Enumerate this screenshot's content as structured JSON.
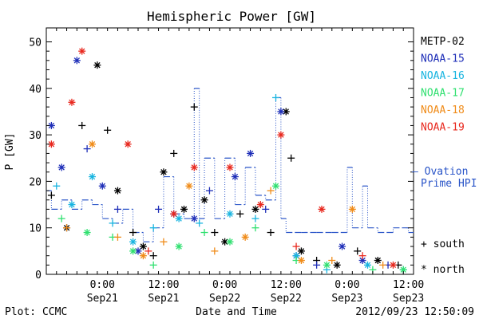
{
  "chart_data": {
    "type": "scatter",
    "title": "Hemispheric Power [GW]",
    "xlabel": "Date and Time",
    "ylabel": "P [GW]",
    "xlim": [
      "2012-09-20T13:00",
      "2012-09-23T13:00"
    ],
    "ylim": [
      0,
      53
    ],
    "yticks": [
      0,
      10,
      20,
      30,
      40,
      50
    ],
    "xticks": [
      {
        "top": "0:00",
        "bottom": "Sep21",
        "x": "2012-09-21T00:00"
      },
      {
        "top": "12:00",
        "bottom": "Sep21",
        "x": "2012-09-21T12:00"
      },
      {
        "top": "0:00",
        "bottom": "Sep22",
        "x": "2012-09-22T00:00"
      },
      {
        "top": "12:00",
        "bottom": "Sep22",
        "x": "2012-09-22T12:00"
      },
      {
        "top": "0:00",
        "bottom": "Sep23",
        "x": "2012-09-23T00:00"
      },
      {
        "top": "12:00",
        "bottom": "Sep23",
        "x": "2012-09-23T12:00"
      }
    ],
    "marker_legend": {
      "south": "+ south",
      "north": "* north"
    },
    "ovation_legend": [
      "— Ovation",
      "Prime HPI"
    ],
    "ovation_color": "#2a55c8",
    "series": [
      {
        "name": "METP-02",
        "color": "#000000",
        "points": [
          {
            "x": "2012-09-20T14:00",
            "y": 17,
            "m": "+"
          },
          {
            "x": "2012-09-20T17:00",
            "y": 10,
            "m": "*"
          },
          {
            "x": "2012-09-20T20:00",
            "y": 32,
            "m": "+"
          },
          {
            "x": "2012-09-20T23:00",
            "y": 45,
            "m": "*"
          },
          {
            "x": "2012-09-21T01:00",
            "y": 31,
            "m": "+"
          },
          {
            "x": "2012-09-21T03:00",
            "y": 18,
            "m": "*"
          },
          {
            "x": "2012-09-21T06:00",
            "y": 9,
            "m": "+"
          },
          {
            "x": "2012-09-21T08:00",
            "y": 6,
            "m": "*"
          },
          {
            "x": "2012-09-21T10:00",
            "y": 4,
            "m": "+"
          },
          {
            "x": "2012-09-21T12:00",
            "y": 22,
            "m": "*"
          },
          {
            "x": "2012-09-21T14:00",
            "y": 26,
            "m": "+"
          },
          {
            "x": "2012-09-21T16:00",
            "y": 14,
            "m": "*"
          },
          {
            "x": "2012-09-21T18:00",
            "y": 36,
            "m": "+"
          },
          {
            "x": "2012-09-21T20:00",
            "y": 16,
            "m": "*"
          },
          {
            "x": "2012-09-21T22:00",
            "y": 9,
            "m": "+"
          },
          {
            "x": "2012-09-22T00:00",
            "y": 7,
            "m": "*"
          },
          {
            "x": "2012-09-22T03:00",
            "y": 13,
            "m": "+"
          },
          {
            "x": "2012-09-22T06:00",
            "y": 14,
            "m": "*"
          },
          {
            "x": "2012-09-22T09:00",
            "y": 9,
            "m": "+"
          },
          {
            "x": "2012-09-22T12:00",
            "y": 35,
            "m": "*"
          },
          {
            "x": "2012-09-22T13:00",
            "y": 25,
            "m": "+"
          },
          {
            "x": "2012-09-22T15:00",
            "y": 5,
            "m": "*"
          },
          {
            "x": "2012-09-22T18:00",
            "y": 3,
            "m": "+"
          },
          {
            "x": "2012-09-22T22:00",
            "y": 2,
            "m": "*"
          },
          {
            "x": "2012-09-23T02:00",
            "y": 5,
            "m": "+"
          },
          {
            "x": "2012-09-23T06:00",
            "y": 3,
            "m": "*"
          },
          {
            "x": "2012-09-23T10:00",
            "y": 2,
            "m": "+"
          }
        ]
      },
      {
        "name": "NOAA-15",
        "color": "#1f2fb8",
        "points": [
          {
            "x": "2012-09-20T14:00",
            "y": 32,
            "m": "*"
          },
          {
            "x": "2012-09-20T16:00",
            "y": 23,
            "m": "*"
          },
          {
            "x": "2012-09-20T19:00",
            "y": 46,
            "m": "*"
          },
          {
            "x": "2012-09-20T21:00",
            "y": 27,
            "m": "+"
          },
          {
            "x": "2012-09-21T00:00",
            "y": 19,
            "m": "*"
          },
          {
            "x": "2012-09-21T03:00",
            "y": 14,
            "m": "+"
          },
          {
            "x": "2012-09-21T07:00",
            "y": 5,
            "m": "*"
          },
          {
            "x": "2012-09-21T11:00",
            "y": 14,
            "m": "+"
          },
          {
            "x": "2012-09-21T14:00",
            "y": 13,
            "m": "*"
          },
          {
            "x": "2012-09-21T18:00",
            "y": 12,
            "m": "*"
          },
          {
            "x": "2012-09-21T21:00",
            "y": 18,
            "m": "+"
          },
          {
            "x": "2012-09-22T02:00",
            "y": 21,
            "m": "*"
          },
          {
            "x": "2012-09-22T05:00",
            "y": 26,
            "m": "*"
          },
          {
            "x": "2012-09-22T08:00",
            "y": 14,
            "m": "+"
          },
          {
            "x": "2012-09-22T11:00",
            "y": 35,
            "m": "*"
          },
          {
            "x": "2012-09-22T14:00",
            "y": 4,
            "m": "*"
          },
          {
            "x": "2012-09-22T18:00",
            "y": 2,
            "m": "+"
          },
          {
            "x": "2012-09-22T23:00",
            "y": 6,
            "m": "*"
          },
          {
            "x": "2012-09-23T03:00",
            "y": 3,
            "m": "*"
          },
          {
            "x": "2012-09-23T08:00",
            "y": 2,
            "m": "+"
          }
        ]
      },
      {
        "name": "NOAA-16",
        "color": "#18b4e0",
        "points": [
          {
            "x": "2012-09-20T15:00",
            "y": 19,
            "m": "+"
          },
          {
            "x": "2012-09-20T18:00",
            "y": 15,
            "m": "*"
          },
          {
            "x": "2012-09-20T22:00",
            "y": 21,
            "m": "*"
          },
          {
            "x": "2012-09-21T02:00",
            "y": 11,
            "m": "+"
          },
          {
            "x": "2012-09-21T06:00",
            "y": 7,
            "m": "*"
          },
          {
            "x": "2012-09-21T10:00",
            "y": 10,
            "m": "+"
          },
          {
            "x": "2012-09-21T15:00",
            "y": 12,
            "m": "*"
          },
          {
            "x": "2012-09-21T19:00",
            "y": 11,
            "m": "+"
          },
          {
            "x": "2012-09-22T01:00",
            "y": 13,
            "m": "*"
          },
          {
            "x": "2012-09-22T06:00",
            "y": 12,
            "m": "+"
          },
          {
            "x": "2012-09-22T10:00",
            "y": 38,
            "m": "+"
          },
          {
            "x": "2012-09-22T14:00",
            "y": 4,
            "m": "*"
          },
          {
            "x": "2012-09-22T20:00",
            "y": 1,
            "m": "+"
          },
          {
            "x": "2012-09-23T04:00",
            "y": 2,
            "m": "*"
          },
          {
            "x": "2012-09-23T11:00",
            "y": 1,
            "m": "+"
          }
        ]
      },
      {
        "name": "NOAA-17",
        "color": "#30e070",
        "points": [
          {
            "x": "2012-09-20T16:00",
            "y": 12,
            "m": "+"
          },
          {
            "x": "2012-09-20T21:00",
            "y": 9,
            "m": "*"
          },
          {
            "x": "2012-09-21T02:00",
            "y": 8,
            "m": "+"
          },
          {
            "x": "2012-09-21T06:00",
            "y": 5,
            "m": "*"
          },
          {
            "x": "2012-09-21T10:00",
            "y": 2,
            "m": "+"
          },
          {
            "x": "2012-09-21T15:00",
            "y": 6,
            "m": "*"
          },
          {
            "x": "2012-09-21T20:00",
            "y": 9,
            "m": "+"
          },
          {
            "x": "2012-09-22T01:00",
            "y": 7,
            "m": "*"
          },
          {
            "x": "2012-09-22T06:00",
            "y": 10,
            "m": "+"
          },
          {
            "x": "2012-09-22T10:00",
            "y": 19,
            "m": "*"
          },
          {
            "x": "2012-09-22T14:00",
            "y": 3,
            "m": "+"
          },
          {
            "x": "2012-09-22T20:00",
            "y": 2,
            "m": "*"
          },
          {
            "x": "2012-09-23T05:00",
            "y": 1,
            "m": "+"
          },
          {
            "x": "2012-09-23T11:00",
            "y": 1,
            "m": "*"
          }
        ]
      },
      {
        "name": "NOAA-18",
        "color": "#f08c1a",
        "points": [
          {
            "x": "2012-09-20T17:00",
            "y": 10,
            "m": "+"
          },
          {
            "x": "2012-09-20T22:00",
            "y": 28,
            "m": "*"
          },
          {
            "x": "2012-09-21T03:00",
            "y": 8,
            "m": "+"
          },
          {
            "x": "2012-09-21T08:00",
            "y": 4,
            "m": "*"
          },
          {
            "x": "2012-09-21T12:00",
            "y": 7,
            "m": "+"
          },
          {
            "x": "2012-09-21T17:00",
            "y": 19,
            "m": "*"
          },
          {
            "x": "2012-09-21T22:00",
            "y": 5,
            "m": "+"
          },
          {
            "x": "2012-09-22T04:00",
            "y": 8,
            "m": "*"
          },
          {
            "x": "2012-09-22T09:00",
            "y": 18,
            "m": "+"
          },
          {
            "x": "2012-09-22T15:00",
            "y": 3,
            "m": "*"
          },
          {
            "x": "2012-09-22T21:00",
            "y": 3,
            "m": "+"
          },
          {
            "x": "2012-09-23T01:00",
            "y": 14,
            "m": "*"
          },
          {
            "x": "2012-09-23T07:00",
            "y": 2,
            "m": "+"
          }
        ]
      },
      {
        "name": "NOAA-19",
        "color": "#e8281e",
        "points": [
          {
            "x": "2012-09-20T14:00",
            "y": 28,
            "m": "*"
          },
          {
            "x": "2012-09-20T18:00",
            "y": 37,
            "m": "*"
          },
          {
            "x": "2012-09-20T20:00",
            "y": 48,
            "m": "*"
          },
          {
            "x": "2012-09-21T05:00",
            "y": 28,
            "m": "*"
          },
          {
            "x": "2012-09-21T09:00",
            "y": 5,
            "m": "+"
          },
          {
            "x": "2012-09-21T14:00",
            "y": 13,
            "m": "*"
          },
          {
            "x": "2012-09-21T18:00",
            "y": 23,
            "m": "*"
          },
          {
            "x": "2012-09-22T01:00",
            "y": 23,
            "m": "*"
          },
          {
            "x": "2012-09-22T07:00",
            "y": 15,
            "m": "*"
          },
          {
            "x": "2012-09-22T11:00",
            "y": 30,
            "m": "*"
          },
          {
            "x": "2012-09-22T14:00",
            "y": 6,
            "m": "+"
          },
          {
            "x": "2012-09-22T19:00",
            "y": 14,
            "m": "*"
          },
          {
            "x": "2012-09-23T03:00",
            "y": 4,
            "m": "+"
          },
          {
            "x": "2012-09-23T09:00",
            "y": 2,
            "m": "*"
          }
        ]
      }
    ],
    "ovation": [
      {
        "x": "2012-09-20T13:00",
        "y": 18
      },
      {
        "x": "2012-09-20T14:00",
        "y": 14
      },
      {
        "x": "2012-09-20T16:00",
        "y": 16
      },
      {
        "x": "2012-09-20T18:00",
        "y": 14
      },
      {
        "x": "2012-09-20T20:00",
        "y": 16
      },
      {
        "x": "2012-09-20T22:00",
        "y": 15
      },
      {
        "x": "2012-09-21T00:00",
        "y": 12
      },
      {
        "x": "2012-09-21T02:00",
        "y": 11
      },
      {
        "x": "2012-09-21T04:00",
        "y": 14
      },
      {
        "x": "2012-09-21T06:00",
        "y": 9
      },
      {
        "x": "2012-09-21T08:00",
        "y": 7
      },
      {
        "x": "2012-09-21T10:00",
        "y": 10
      },
      {
        "x": "2012-09-21T12:00",
        "y": 21
      },
      {
        "x": "2012-09-21T14:00",
        "y": 13
      },
      {
        "x": "2012-09-21T16:00",
        "y": 12
      },
      {
        "x": "2012-09-21T18:00",
        "y": 40
      },
      {
        "x": "2012-09-21T19:00",
        "y": 12
      },
      {
        "x": "2012-09-21T20:00",
        "y": 25
      },
      {
        "x": "2012-09-21T22:00",
        "y": 12
      },
      {
        "x": "2012-09-22T00:00",
        "y": 25
      },
      {
        "x": "2012-09-22T02:00",
        "y": 15
      },
      {
        "x": "2012-09-22T04:00",
        "y": 23
      },
      {
        "x": "2012-09-22T06:00",
        "y": 17
      },
      {
        "x": "2012-09-22T08:00",
        "y": 16
      },
      {
        "x": "2012-09-22T10:00",
        "y": 38
      },
      {
        "x": "2012-09-22T11:00",
        "y": 12
      },
      {
        "x": "2012-09-22T12:00",
        "y": 9
      },
      {
        "x": "2012-09-22T15:00",
        "y": 9
      },
      {
        "x": "2012-09-22T18:00",
        "y": 9
      },
      {
        "x": "2012-09-22T21:00",
        "y": 9
      },
      {
        "x": "2012-09-23T00:00",
        "y": 23
      },
      {
        "x": "2012-09-23T01:00",
        "y": 10
      },
      {
        "x": "2012-09-23T03:00",
        "y": 19
      },
      {
        "x": "2012-09-23T04:00",
        "y": 10
      },
      {
        "x": "2012-09-23T06:00",
        "y": 9
      },
      {
        "x": "2012-09-23T09:00",
        "y": 10
      },
      {
        "x": "2012-09-23T12:00",
        "y": 9
      },
      {
        "x": "2012-09-23T13:00",
        "y": 9
      }
    ]
  },
  "footer": {
    "left": "Plot: CCMC",
    "right": "2012/09/23 12:50:09"
  }
}
